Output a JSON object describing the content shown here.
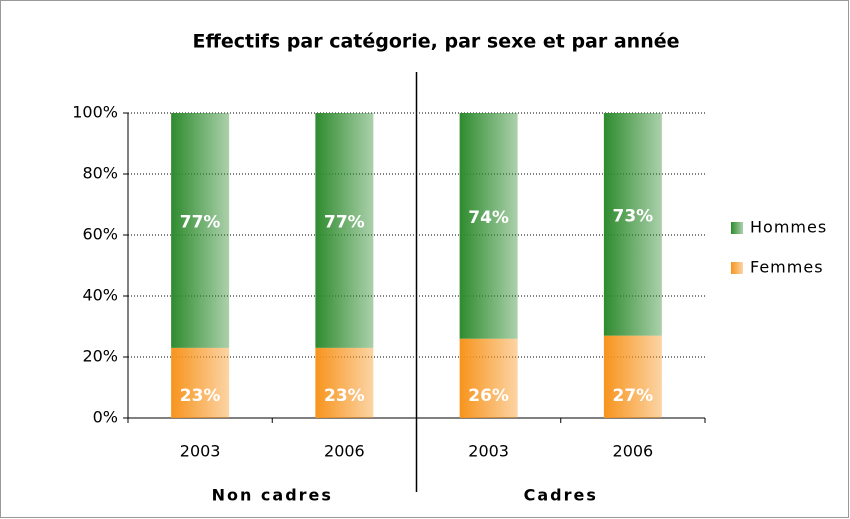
{
  "chart_data": {
    "type": "stacked_bar_100",
    "title": "Effectifs par catégorie, par sexe et par année",
    "categories": [
      "2003",
      "2006",
      "2003",
      "2006"
    ],
    "groups": [
      "Non cadres",
      "Cadres"
    ],
    "series": [
      {
        "name": "Femmes",
        "color": "#f7941d",
        "values": [
          23,
          23,
          26,
          27
        ],
        "value_labels": [
          "23%",
          "23%",
          "26%",
          "27%"
        ]
      },
      {
        "name": "Hommes",
        "color": "#2e8b2e",
        "values": [
          77,
          77,
          74,
          73
        ],
        "value_labels": [
          "77%",
          "77%",
          "74%",
          "73%"
        ]
      }
    ],
    "ylim": [
      0,
      100
    ],
    "yticks": [
      {
        "value": 0,
        "label": "0%"
      },
      {
        "value": 20,
        "label": "20%"
      },
      {
        "value": 40,
        "label": "40%"
      },
      {
        "value": 60,
        "label": "60%"
      },
      {
        "value": 80,
        "label": "80%"
      },
      {
        "value": 100,
        "label": "100%"
      }
    ],
    "grid": true,
    "legend": "right"
  }
}
